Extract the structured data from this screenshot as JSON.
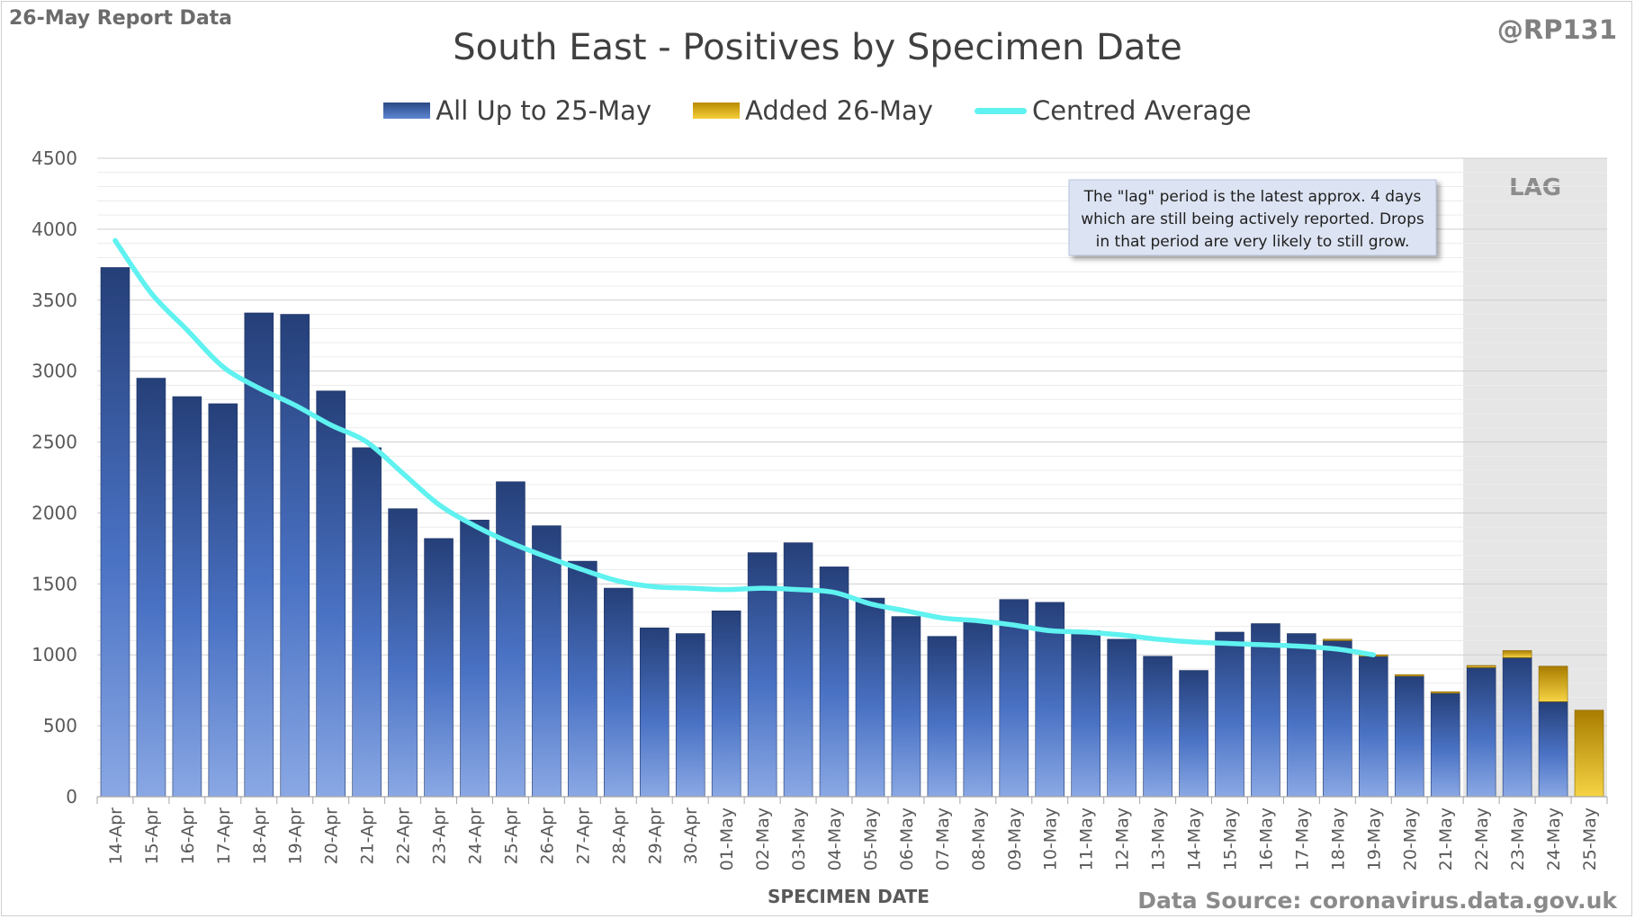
{
  "header": {
    "report_label": "26-May Report Data",
    "handle": "@RP131",
    "title": "South East - Positives by Specimen Date"
  },
  "legend": [
    {
      "label": "All Up to 25-May",
      "color": "#3a5ea6"
    },
    {
      "label": "Added 26-May",
      "color": "#e8b820"
    },
    {
      "label": "Centred Average",
      "color": "#5ff2f0"
    }
  ],
  "annotation": "The \"lag\" period is the latest approx. 4 days which are still being actively reported. Drops in that period are very likely to still grow.",
  "lag_label": "LAG",
  "footer": {
    "source": "Data Source: coronavirus.data.gov.uk"
  },
  "chart_data": {
    "type": "bar",
    "title": "South East - Positives by Specimen Date",
    "xlabel": "SPECIMEN DATE",
    "ylabel": "",
    "ylim": [
      0,
      4500
    ],
    "yticks": [
      0,
      500,
      1000,
      1500,
      2000,
      2500,
      3000,
      3500,
      4000,
      4500
    ],
    "grid": true,
    "legend_position": "top",
    "stacked": true,
    "categories": [
      "14-Apr",
      "15-Apr",
      "16-Apr",
      "17-Apr",
      "18-Apr",
      "19-Apr",
      "20-Apr",
      "21-Apr",
      "22-Apr",
      "23-Apr",
      "24-Apr",
      "25-Apr",
      "26-Apr",
      "27-Apr",
      "28-Apr",
      "29-Apr",
      "30-Apr",
      "01-May",
      "02-May",
      "03-May",
      "04-May",
      "05-May",
      "06-May",
      "07-May",
      "08-May",
      "09-May",
      "10-May",
      "11-May",
      "12-May",
      "13-May",
      "14-May",
      "15-May",
      "16-May",
      "17-May",
      "18-May",
      "19-May",
      "20-May",
      "21-May",
      "22-May",
      "23-May",
      "24-May",
      "25-May"
    ],
    "series": [
      {
        "name": "All Up to 25-May",
        "color": "#3a5ea6",
        "values": [
          3730,
          2950,
          2820,
          2770,
          3410,
          3400,
          2860,
          2460,
          2030,
          1820,
          1950,
          2220,
          1910,
          1660,
          1470,
          1190,
          1150,
          1310,
          1720,
          1790,
          1620,
          1400,
          1270,
          1130,
          1240,
          1390,
          1370,
          1170,
          1110,
          990,
          890,
          1160,
          1220,
          1150,
          1100,
          990,
          850,
          730,
          910,
          980,
          670,
          0
        ]
      },
      {
        "name": "Added 26-May",
        "color": "#e8b820",
        "values": [
          0,
          0,
          0,
          0,
          0,
          0,
          0,
          0,
          0,
          0,
          0,
          0,
          0,
          0,
          0,
          0,
          0,
          0,
          0,
          0,
          0,
          0,
          0,
          0,
          0,
          0,
          0,
          0,
          0,
          0,
          0,
          0,
          0,
          0,
          10,
          10,
          10,
          10,
          15,
          50,
          250,
          610
        ]
      },
      {
        "name": "Centred Average",
        "type": "line",
        "color": "#5ff2f0",
        "values": [
          3920,
          3550,
          3290,
          3030,
          2880,
          2760,
          2620,
          2500,
          2280,
          2060,
          1910,
          1790,
          1690,
          1600,
          1520,
          1480,
          1470,
          1460,
          1470,
          1460,
          1440,
          1360,
          1310,
          1260,
          1240,
          1210,
          1170,
          1160,
          1140,
          1110,
          1090,
          1080,
          1070,
          1060,
          1040,
          1000,
          null,
          null,
          null,
          null,
          null,
          null
        ]
      }
    ],
    "lag_categories": [
      "22-May",
      "23-May",
      "24-May",
      "25-May"
    ]
  }
}
